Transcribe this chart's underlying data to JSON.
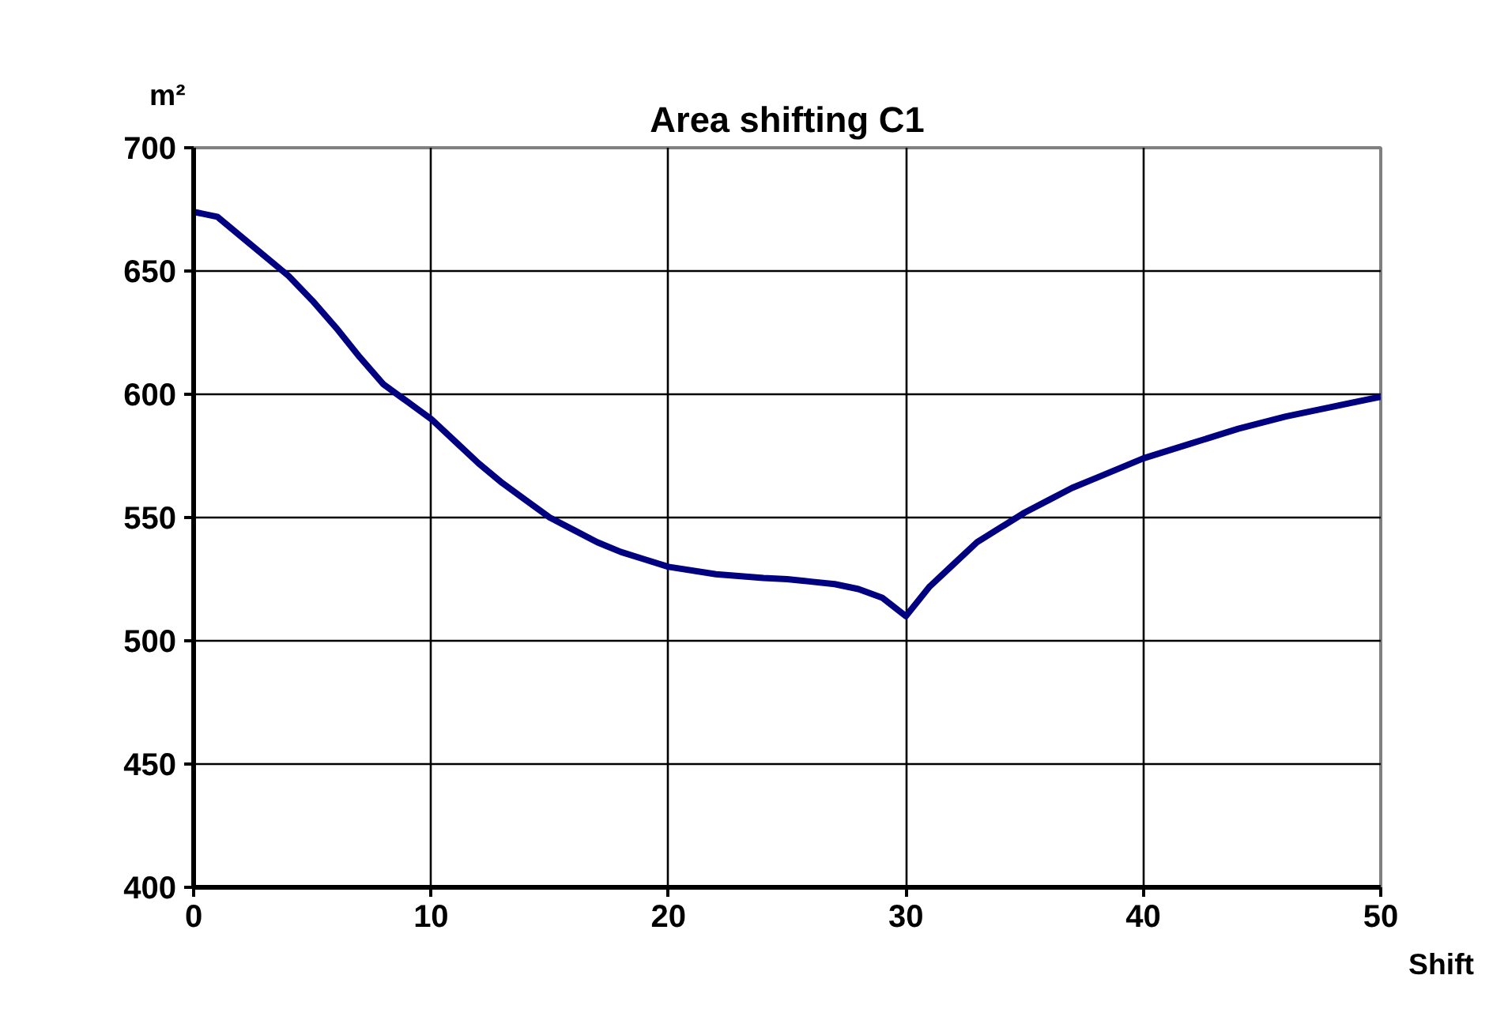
{
  "chart_data": {
    "type": "line",
    "title": "Area shifting C1",
    "xlabel": "Shift",
    "ylabel": "m²",
    "x": [
      0,
      1,
      2,
      4,
      5,
      6,
      7,
      8,
      9,
      10,
      11,
      12,
      13,
      14,
      15,
      16,
      17,
      18,
      19,
      20,
      22,
      24,
      25,
      26,
      27,
      28,
      29,
      30,
      31,
      32,
      33,
      34,
      35,
      36,
      37,
      38,
      39,
      40,
      42,
      44,
      46,
      48,
      50
    ],
    "series": [
      {
        "color": "#000080",
        "values": [
          674,
          672,
          664,
          648,
          638,
          627,
          615,
          604,
          597,
          590,
          581,
          572,
          564,
          557,
          550,
          545,
          540,
          536,
          533,
          530,
          527,
          525.5,
          525,
          524,
          523,
          521,
          517.5,
          510,
          522,
          531,
          540,
          546,
          552,
          557,
          562,
          566,
          570,
          574,
          580,
          586,
          591,
          595,
          599
        ]
      }
    ],
    "xlim": [
      0,
      50
    ],
    "xticks": [
      0,
      10,
      20,
      30,
      40,
      50
    ],
    "ylim": [
      400,
      700
    ],
    "yticks": [
      400,
      450,
      500,
      550,
      600,
      650,
      700
    ],
    "grid": true,
    "marker": "none",
    "line_style": "solid"
  }
}
